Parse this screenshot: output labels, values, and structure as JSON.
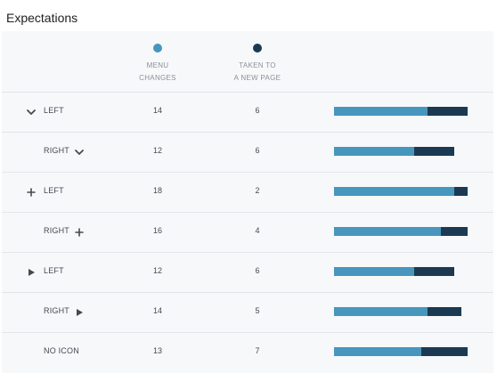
{
  "title": "Expectations",
  "colors": {
    "menu_changes": "#4796bd",
    "new_page": "#1b3a52"
  },
  "chart_data": {
    "type": "bar",
    "orientation": "horizontal",
    "stacked": true,
    "title": "Expectations",
    "legend": [
      {
        "line1": "MENU",
        "line2": "CHANGES",
        "color": "#4796bd"
      },
      {
        "line1": "TAKEN TO",
        "line2": "A NEW PAGE",
        "color": "#1b3a52"
      }
    ],
    "categories": [
      "LEFT",
      "RIGHT",
      "LEFT",
      "RIGHT",
      "LEFT",
      "RIGHT",
      "NO ICON"
    ],
    "icons": [
      "chevron-down",
      "chevron-down",
      "plus",
      "plus",
      "triangle-right",
      "triangle-right",
      "none"
    ],
    "icon_side": [
      "left",
      "right",
      "left",
      "right",
      "left",
      "right",
      "none"
    ],
    "series": [
      {
        "name": "MENU CHANGES",
        "values": [
          14,
          12,
          18,
          16,
          12,
          14,
          13
        ]
      },
      {
        "name": "TAKEN TO A NEW PAGE",
        "values": [
          6,
          6,
          2,
          4,
          6,
          5,
          7
        ]
      }
    ]
  }
}
